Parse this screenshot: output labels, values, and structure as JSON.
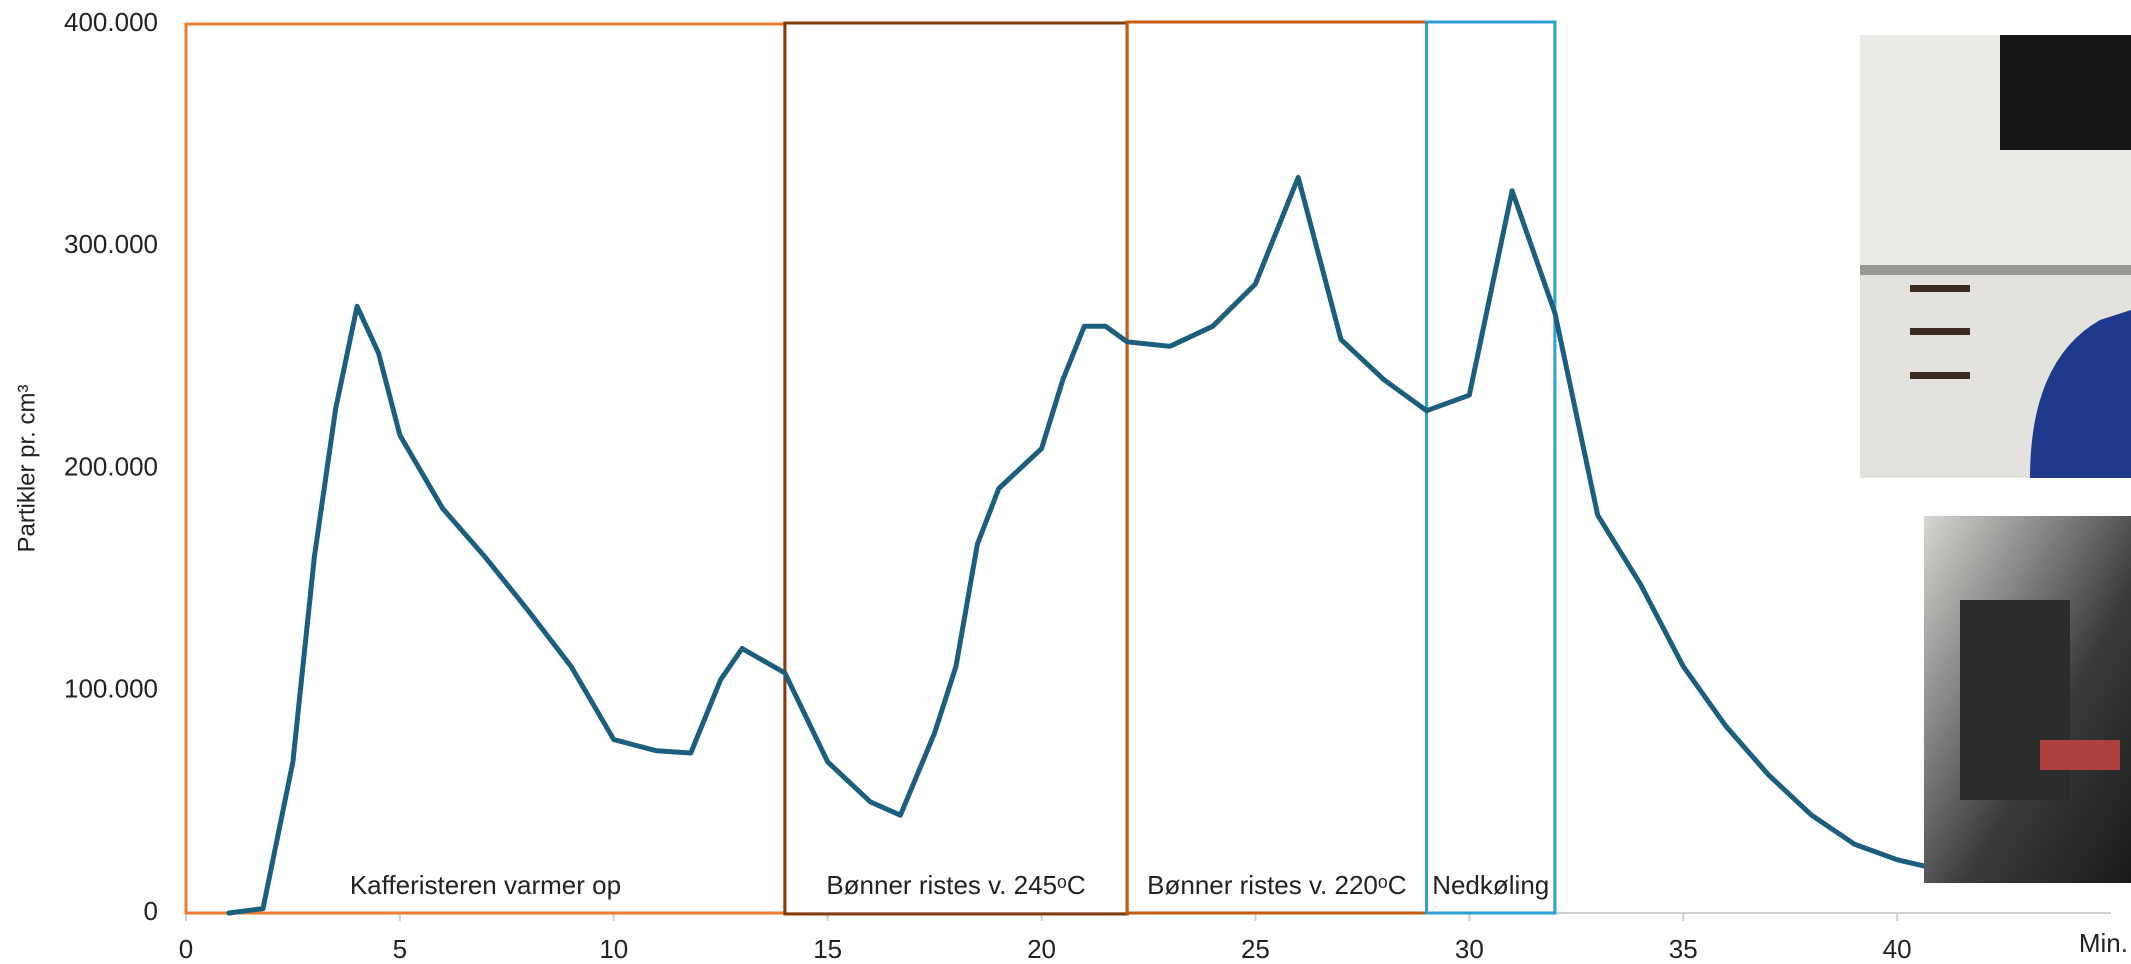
{
  "chart_data": {
    "type": "line",
    "y_label": "Partikler pr. cm³",
    "x_label": "Min.",
    "x": [
      1,
      1.8,
      2.5,
      3,
      3.5,
      4,
      4.5,
      5,
      6,
      7,
      8,
      9,
      10,
      11,
      11.8,
      12.5,
      13,
      14,
      15,
      16,
      16.7,
      17.5,
      18,
      18.5,
      19,
      20,
      20.5,
      21,
      21.5,
      22,
      23,
      24,
      25,
      26,
      27,
      28,
      29,
      30,
      31,
      32,
      33,
      34,
      35,
      36,
      37,
      38,
      39,
      40,
      41
    ],
    "series": [
      {
        "color": "#1b5e7e",
        "values": [
          0,
          2000,
          68000,
          160000,
          227000,
          273000,
          252000,
          215000,
          182000,
          160000,
          136000,
          111000,
          78000,
          73000,
          72000,
          105000,
          119000,
          108000,
          68000,
          50000,
          44000,
          81000,
          111000,
          166000,
          191000,
          209000,
          240000,
          264000,
          264000,
          257000,
          255000,
          264000,
          283000,
          331000,
          258000,
          240000,
          226000,
          233000,
          325000,
          270000,
          179000,
          148000,
          111000,
          84000,
          62000,
          44000,
          31000,
          24000,
          19500
        ]
      }
    ],
    "phases": [
      {
        "start": 0,
        "end": 14,
        "label": "Kafferisteren varmer op",
        "color": "#ed7d31"
      },
      {
        "start": 14,
        "end": 22,
        "label": "Bønner ristes v. 245ᵒC",
        "color": "#843c0c"
      },
      {
        "start": 22,
        "end": 29,
        "label": "Bønner ristes v. 220ᵒC",
        "color": "#c55a11"
      },
      {
        "start": 29,
        "end": 32,
        "label": "Nedkøling",
        "color": "#2b9fd8"
      }
    ],
    "xlim": [
      0,
      45
    ],
    "xticks": [
      0,
      5,
      10,
      15,
      20,
      25,
      30,
      35,
      40
    ],
    "ylim": [
      0,
      400000
    ],
    "yticks": [
      0,
      {
        "value": 100000,
        "label": "100.000"
      },
      {
        "value": 200000,
        "label": "200.000"
      },
      {
        "value": 300000,
        "label": "300.000"
      },
      {
        "value": 400000,
        "label": "400.000"
      }
    ],
    "grid": false
  }
}
